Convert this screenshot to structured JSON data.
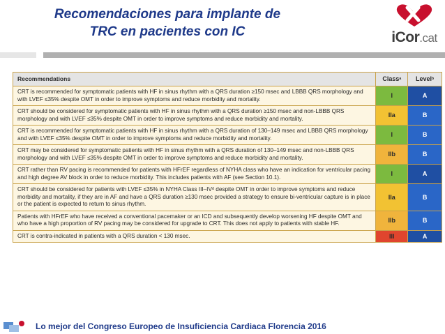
{
  "slide": {
    "title_line1": "Recomendaciones para implante de",
    "title_line2": "TRC en pacientes con IC",
    "logo": {
      "text_main": "iCor",
      "text_tld": ".cat",
      "icon": "heart-logo-icon"
    },
    "footer": "Lo mejor del Congreso Europeo de Insuficiencia Cardiaca Florencia 2016"
  },
  "table": {
    "headers": {
      "recommendations": "Recommendations",
      "class": "Class",
      "class_sup": "a",
      "level": "Level",
      "level_sup": "b"
    },
    "rows": [
      {
        "text": "CRT is recommended for symptomatic patients with HF in sinus rhythm with a QRS duration ≥150 msec and LBBB QRS morphology and with LVEF ≤35% despite OMT in order to improve symptoms and reduce morbidity and mortality.",
        "class": "I",
        "level": "A",
        "class_color": "#7cba3f",
        "level_color": "#1f4fa3"
      },
      {
        "text": "CRT should be considered for symptomatic patients with HF in sinus rhythm with a QRS duration ≥150 msec and non-LBBB QRS morphology and with LVEF ≤35% despite OMT in order to improve symptoms and reduce morbidity and mortality.",
        "class": "IIa",
        "level": "B",
        "class_color": "#f2c233",
        "level_color": "#2a66c7"
      },
      {
        "text": "CRT is recommended for symptomatic patients with HF in sinus rhythm with a QRS duration of 130–149 msec and LBBB QRS morphology and with LVEF ≤35% despite OMT in order to improve symptoms and reduce morbidity and mortality.",
        "class": "I",
        "level": "B",
        "class_color": "#7cba3f",
        "level_color": "#2a66c7"
      },
      {
        "text": "CRT may be considered for symptomatic patients with HF in sinus rhythm with a QRS duration of 130–149 msec and non-LBBB QRS morphology and with LVEF ≤35% despite OMT in order to improve symptoms and reduce morbidity and mortality.",
        "class": "IIb",
        "level": "B",
        "class_color": "#f0b43c",
        "level_color": "#2a66c7"
      },
      {
        "text": "CRT rather than RV pacing is recommended for patients with HFrEF regardless of NYHA class who have an indication for ventricular pacing and high degree AV block in order to reduce morbidity. This includes patients with AF (see Section 10.1).",
        "class": "I",
        "level": "A",
        "class_color": "#7cba3f",
        "level_color": "#1f4fa3"
      },
      {
        "text": "CRT should be considered for patients with LVEF ≤35% in NYHA Class III–IVᵈ despite OMT in order to improve symptoms and reduce morbidity and mortality, if they are in AF and have a QRS duration ≥130 msec provided a strategy to ensure bi-ventricular capture is in place or the patient is expected to return to sinus rhythm.",
        "class": "IIa",
        "level": "B",
        "class_color": "#f2c233",
        "level_color": "#2a66c7"
      },
      {
        "text": "Patients with HFrEF who have received a conventional pacemaker or an ICD and subsequently develop worsening HF despite OMT and who have a high proportion of RV pacing may be considered for upgrade to CRT. This does not apply to patients with stable HF.",
        "class": "IIb",
        "level": "B",
        "class_color": "#f0b43c",
        "level_color": "#2a66c7"
      },
      {
        "text": "CRT is contra-indicated in patients with a QRS duration < 130 msec.",
        "class": "III",
        "level": "A",
        "class_color": "#e0452e",
        "level_color": "#1f4fa3"
      }
    ]
  }
}
